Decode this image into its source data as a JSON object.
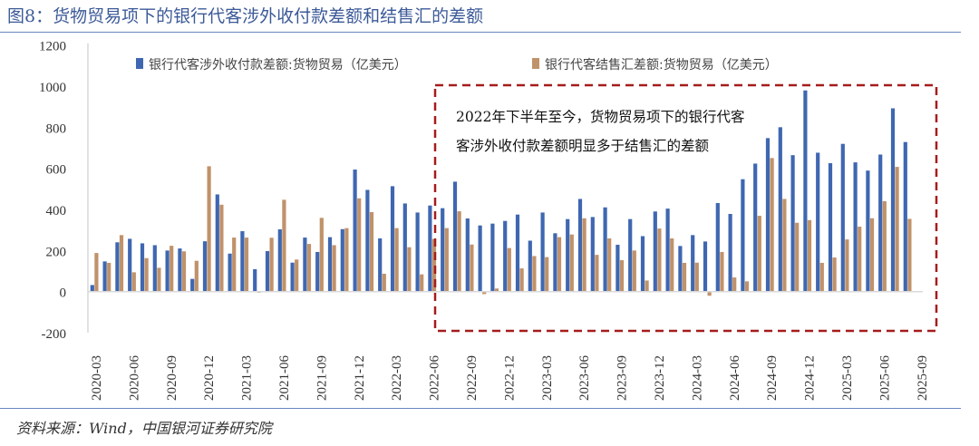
{
  "title": "图8：货物贸易项下的银行代客涉外收付款差额和结售汇的差额",
  "source": "资料来源：Wind，中国银河证券研究院",
  "annotation": [
    "2022年下半年至今，货物贸易项下的银行代客",
    "客涉外收付款差额明显多于结售汇的差额"
  ],
  "colors": {
    "series1": "#3f67b1",
    "series2": "#c0926a",
    "box": "#a51c1c",
    "title": "#3c5a98"
  },
  "chart_data": {
    "type": "bar",
    "title": "图8：货物贸易项下的银行代客涉外收付款差额和结售汇的差额",
    "xlabel": "",
    "ylabel": "",
    "ylim": [
      -200,
      1200
    ],
    "yticks": [
      -200,
      0,
      200,
      400,
      600,
      800,
      1000,
      1200
    ],
    "grid": false,
    "legend": "top",
    "tick_labels": [
      "2020-03",
      "2020-06",
      "2020-09",
      "2020-12",
      "2021-03",
      "2021-06",
      "2021-09",
      "2021-12",
      "2022-03",
      "2022-06",
      "2022-09",
      "2022-12",
      "2023-03",
      "2023-06",
      "2023-09",
      "2023-12",
      "2024-03",
      "2024-06",
      "2024-09",
      "2024-12",
      "2025-03",
      "2025-06",
      "2025-09"
    ],
    "categories": [
      "2020-03",
      "2020-04",
      "2020-05",
      "2020-06",
      "2020-07",
      "2020-08",
      "2020-09",
      "2020-10",
      "2020-11",
      "2020-12",
      "2021-01",
      "2021-02",
      "2021-03",
      "2021-04",
      "2021-05",
      "2021-06",
      "2021-07",
      "2021-08",
      "2021-09",
      "2021-10",
      "2021-11",
      "2021-12",
      "2022-01",
      "2022-02",
      "2022-03",
      "2022-04",
      "2022-05",
      "2022-06",
      "2022-07",
      "2022-08",
      "2022-09",
      "2022-10",
      "2022-11",
      "2022-12",
      "2023-01",
      "2023-02",
      "2023-03",
      "2023-04",
      "2023-05",
      "2023-06",
      "2023-07",
      "2023-08",
      "2023-09",
      "2023-10",
      "2023-11",
      "2023-12",
      "2024-01",
      "2024-02",
      "2024-03",
      "2024-04",
      "2024-05",
      "2024-06",
      "2024-07",
      "2024-08",
      "2024-09",
      "2024-10",
      "2024-11",
      "2024-12",
      "2025-01",
      "2025-02",
      "2025-03",
      "2025-04",
      "2025-05",
      "2025-06",
      "2025-07",
      "2025-08",
      "2025-09"
    ],
    "series": [
      {
        "name": "银行代客涉外收付款差额:货物贸易（亿美元）",
        "values": [
          32,
          147,
          240,
          257,
          235,
          226,
          200,
          210,
          62,
          245,
          473,
          185,
          294,
          109,
          197,
          303,
          141,
          263,
          193,
          265,
          304,
          594,
          495,
          259,
          513,
          429,
          385,
          419,
          406,
          535,
          356,
          322,
          331,
          344,
          375,
          248,
          385,
          284,
          353,
          451,
          363,
          410,
          228,
          353,
          270,
          390,
          404,
          222,
          275,
          244,
          431,
          378,
          547,
          623,
          747,
          800,
          664,
          979,
          676,
          625,
          719,
          629,
          589,
          667,
          892,
          728,
          null
        ]
      },
      {
        "name": "银行代客结售汇差额:货物贸易（亿美元）",
        "values": [
          188,
          140,
          275,
          94,
          163,
          116,
          223,
          196,
          150,
          610,
          423,
          263,
          263,
          -5,
          262,
          447,
          156,
          232,
          359,
          226,
          309,
          454,
          387,
          87,
          309,
          216,
          84,
          256,
          309,
          391,
          229,
          -12,
          15,
          212,
          113,
          173,
          168,
          265,
          278,
          357,
          179,
          259,
          153,
          200,
          54,
          307,
          259,
          140,
          141,
          -20,
          193,
          69,
          50,
          369,
          650,
          451,
          335,
          348,
          140,
          166,
          254,
          316,
          357,
          440,
          607,
          354,
          null
        ]
      }
    ]
  }
}
